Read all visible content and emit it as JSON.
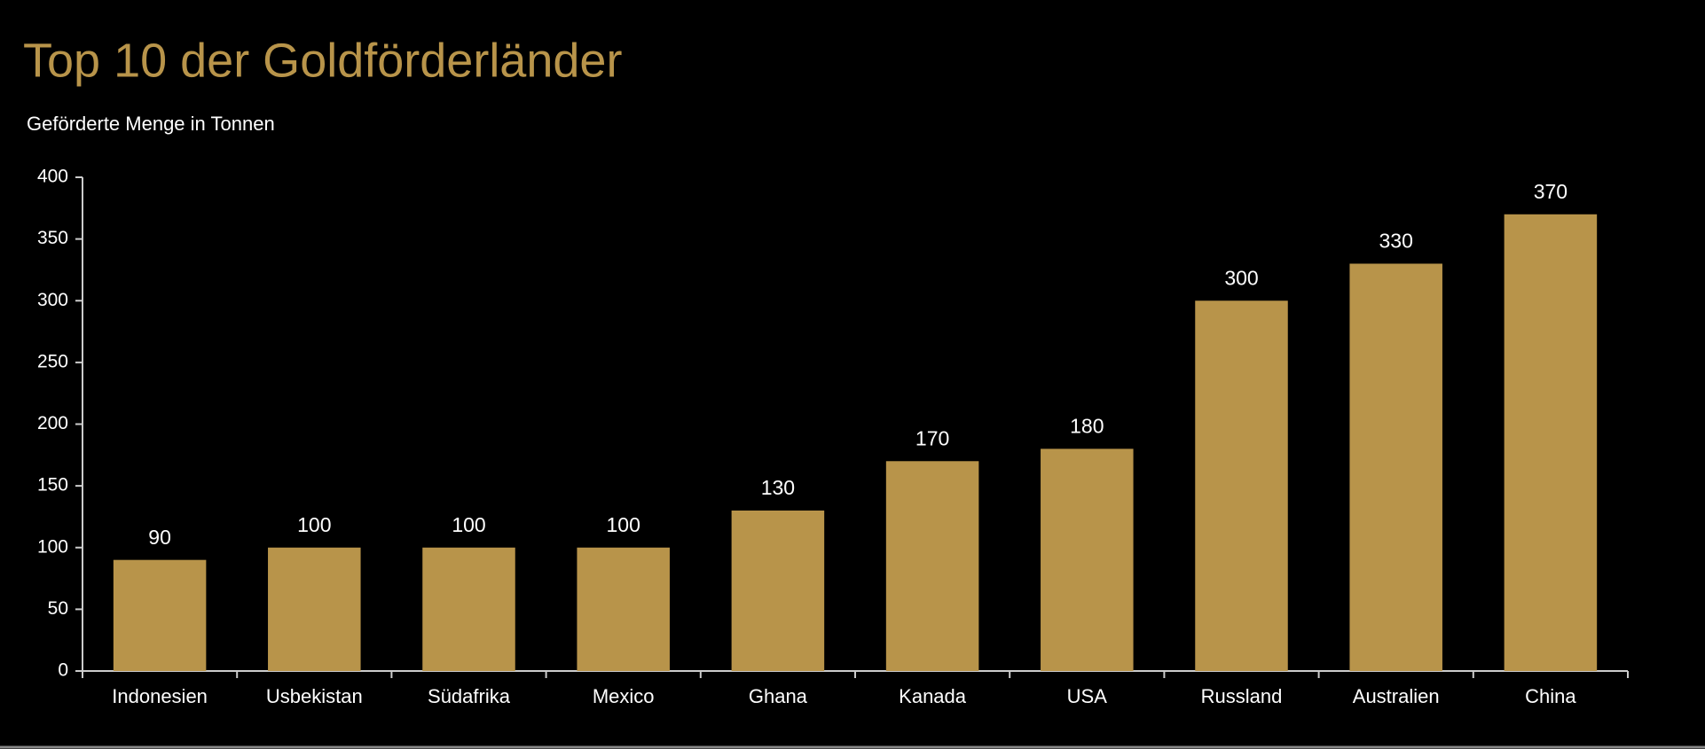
{
  "chart_data": {
    "type": "bar",
    "title": "Top 10 der Goldförderländer",
    "subtitle": "Geförderte Menge in Tonnen",
    "categories": [
      "Indonesien",
      "Usbekistan",
      "Südafrika",
      "Mexico",
      "Ghana",
      "Kanada",
      "USA",
      "Russland",
      "Australien",
      "China"
    ],
    "values": [
      90,
      100,
      100,
      100,
      130,
      170,
      180,
      300,
      330,
      370
    ],
    "color": "#b8944a",
    "ylim": [
      0,
      400
    ],
    "yticks": [
      0,
      50,
      100,
      150,
      200,
      250,
      300,
      350,
      400
    ],
    "grid": false
  }
}
